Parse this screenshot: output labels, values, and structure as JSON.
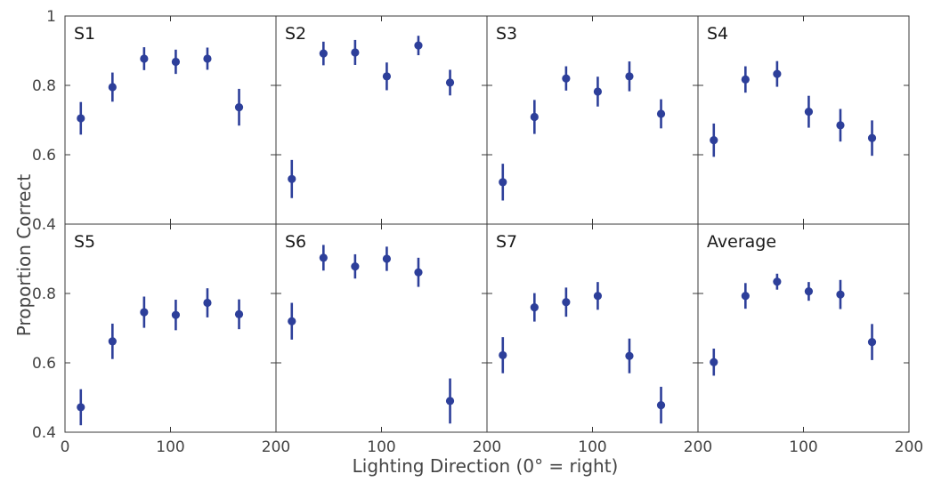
{
  "chart_data": {
    "type": "scatter",
    "layout": "small-multiples-2x4",
    "xlabel": "Lighting Direction (0° =  right)",
    "ylabel": "Proportion Correct",
    "xlim": [
      0,
      200
    ],
    "ylim": [
      0.4,
      1
    ],
    "xticks": [
      "0",
      "100",
      "200"
    ],
    "yticks": [
      "0.4",
      "0.6",
      "0.8",
      "1"
    ],
    "y_tick_values": [
      0.4,
      0.6,
      0.8,
      1.0
    ],
    "x_tick_values": [
      0,
      100,
      200
    ],
    "bottom_x_tick_labels": [
      "0",
      "100",
      "200",
      "100",
      "200",
      "100",
      "200",
      "100",
      "200"
    ],
    "left_y_tick_labels": [
      "1",
      "0.8",
      "0.6",
      "0.4",
      "0.8",
      "0.6",
      "0.4"
    ],
    "grid": false,
    "marker_color": "#2d3f9a",
    "x": [
      15,
      45,
      75,
      105,
      135,
      165
    ],
    "panels": [
      {
        "title": "S1",
        "y": [
          0.705,
          0.795,
          0.877,
          0.868,
          0.877,
          0.737
        ],
        "err": [
          0.047,
          0.042,
          0.033,
          0.035,
          0.032,
          0.053
        ]
      },
      {
        "title": "S2",
        "y": [
          0.53,
          0.892,
          0.895,
          0.826,
          0.915,
          0.808
        ],
        "err": [
          0.055,
          0.034,
          0.036,
          0.04,
          0.028,
          0.037
        ]
      },
      {
        "title": "S3",
        "y": [
          0.521,
          0.709,
          0.82,
          0.782,
          0.826,
          0.718
        ],
        "err": [
          0.053,
          0.049,
          0.035,
          0.043,
          0.043,
          0.042
        ]
      },
      {
        "title": "S4",
        "y": [
          0.642,
          0.817,
          0.833,
          0.724,
          0.685,
          0.648
        ],
        "err": [
          0.048,
          0.038,
          0.037,
          0.046,
          0.047,
          0.051
        ]
      },
      {
        "title": "S5",
        "y": [
          0.472,
          0.662,
          0.746,
          0.738,
          0.773,
          0.74
        ],
        "err": [
          0.052,
          0.051,
          0.045,
          0.044,
          0.042,
          0.043
        ]
      },
      {
        "title": "S6",
        "y": [
          0.72,
          0.903,
          0.878,
          0.9,
          0.861,
          0.49
        ],
        "err": [
          0.053,
          0.037,
          0.035,
          0.035,
          0.042,
          0.065
        ]
      },
      {
        "title": "S7",
        "y": [
          0.622,
          0.76,
          0.775,
          0.793,
          0.62,
          0.478
        ],
        "err": [
          0.052,
          0.041,
          0.042,
          0.04,
          0.05,
          0.053
        ]
      },
      {
        "title": "Average",
        "y": [
          0.602,
          0.793,
          0.834,
          0.806,
          0.797,
          0.66
        ],
        "err": [
          0.039,
          0.037,
          0.023,
          0.027,
          0.042,
          0.052
        ]
      }
    ]
  }
}
